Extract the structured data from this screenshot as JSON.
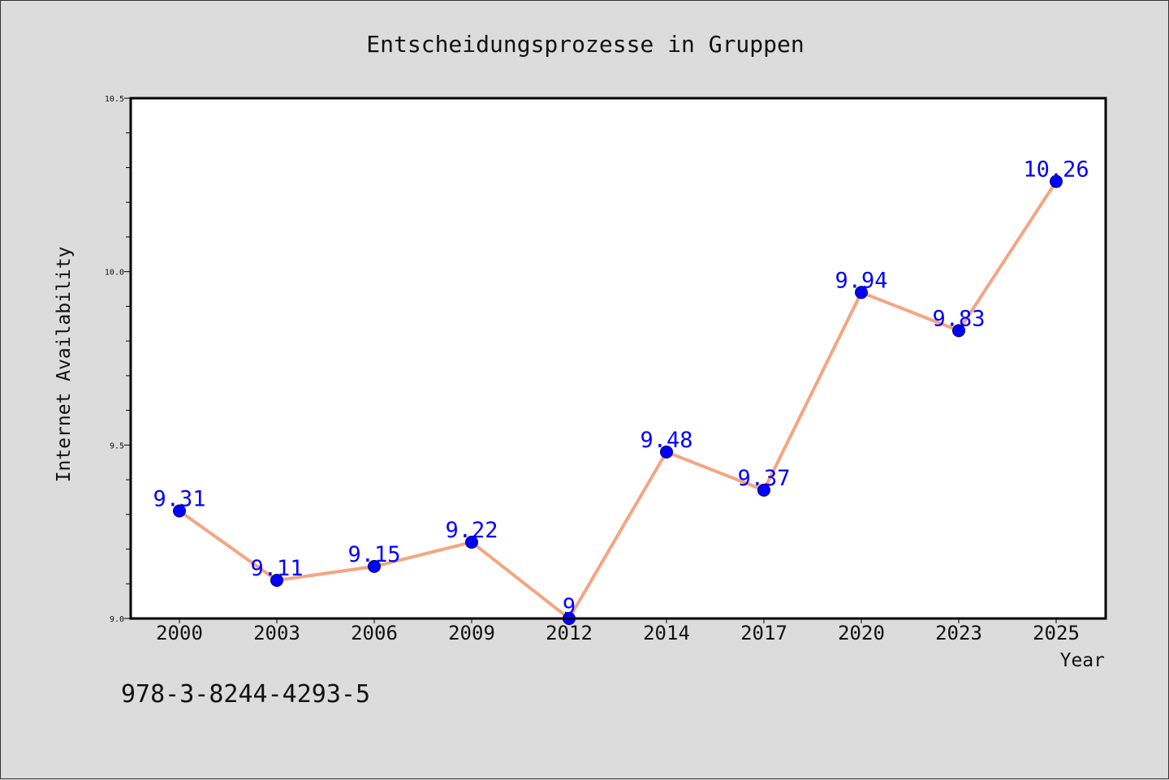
{
  "chart_data": {
    "type": "line",
    "title": "Entscheidungsprozesse in Gruppen",
    "xlabel": "Year",
    "ylabel": "Internet Availability",
    "categories": [
      "2000",
      "2003",
      "2006",
      "2009",
      "2012",
      "2014",
      "2017",
      "2020",
      "2023",
      "2025"
    ],
    "values": [
      9.31,
      9.11,
      9.15,
      9.22,
      9.0,
      9.48,
      9.37,
      9.94,
      9.83,
      10.26
    ],
    "data_labels": [
      "9.31",
      "9.11",
      "9.15",
      "9.22",
      "9",
      "9.48",
      "9.37",
      "9.94",
      "9.83",
      "10.26"
    ],
    "ylim": [
      9.0,
      10.5
    ],
    "yticks": [
      "9.0",
      "9.5",
      "10.0",
      "10.5"
    ],
    "ytick_values": [
      9.0,
      9.5,
      10.0,
      10.5
    ],
    "grid": false,
    "colors": {
      "line": "#f4a582",
      "marker": "#0000ff",
      "marker_edge": "#00007a",
      "data_label": "#0000ff",
      "background": "#dcdcdc",
      "plot_background": "#ffffff"
    }
  },
  "footer": {
    "isbn": "978-3-8244-4293-5"
  }
}
